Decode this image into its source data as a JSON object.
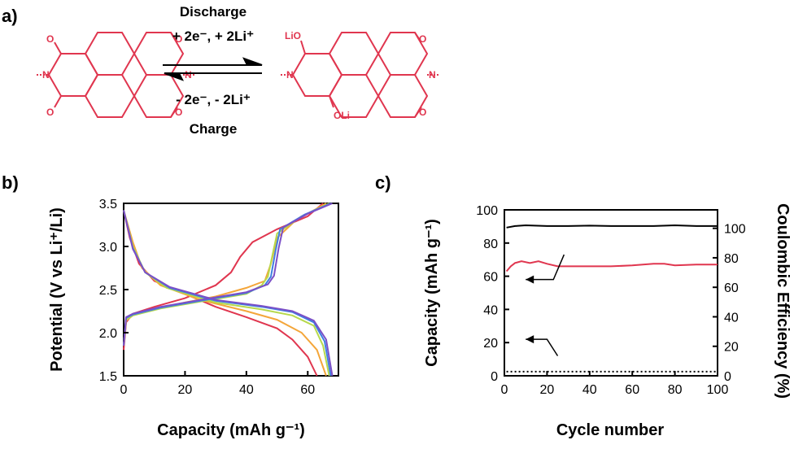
{
  "panels": {
    "a": "a)",
    "b": "b)",
    "c": "c)"
  },
  "reaction": {
    "top_line1": "Discharge",
    "top_line2": "+ 2e⁻, + 2Li⁺",
    "bottom_line1": "- 2e⁻, - 2Li⁺",
    "bottom_line2": "Charge",
    "reactant_atoms": [
      "O",
      "O",
      "O",
      "O",
      "N",
      "N"
    ],
    "product_atoms": [
      "LiO",
      "OLi",
      "O",
      "O",
      "N",
      "N"
    ],
    "molecule_color": "#e0364f"
  },
  "chart_data": [
    {
      "type": "line",
      "xlabel": "Capacity (mAh g⁻¹)",
      "ylabel": "Potential (V vs Li⁺/Li)",
      "xlim": [
        0,
        70
      ],
      "ylim": [
        1.5,
        3.5
      ],
      "xticks": [
        "0",
        "20",
        "40",
        "60"
      ],
      "yticks": [
        "1.5",
        "2.0",
        "2.5",
        "3.0",
        "3.5"
      ],
      "grid": false,
      "series": [
        {
          "color": "#e0364f",
          "discharge": [
            [
              0,
              3.42
            ],
            [
              2,
              3.1
            ],
            [
              5,
              2.8
            ],
            [
              10,
              2.6
            ],
            [
              20,
              2.45
            ],
            [
              30,
              2.3
            ],
            [
              40,
              2.18
            ],
            [
              50,
              2.05
            ],
            [
              55,
              1.92
            ],
            [
              60,
              1.72
            ],
            [
              63,
              1.5
            ]
          ],
          "charge": [
            [
              0,
              1.8
            ],
            [
              0.8,
              2.12
            ],
            [
              3,
              2.22
            ],
            [
              10,
              2.3
            ],
            [
              20,
              2.4
            ],
            [
              30,
              2.55
            ],
            [
              35,
              2.7
            ],
            [
              38,
              2.88
            ],
            [
              42,
              3.05
            ],
            [
              50,
              3.2
            ],
            [
              60,
              3.35
            ],
            [
              65,
              3.5
            ]
          ]
        },
        {
          "color": "#f4a63a",
          "discharge": [
            [
              0,
              3.42
            ],
            [
              3,
              3.05
            ],
            [
              6,
              2.75
            ],
            [
              12,
              2.55
            ],
            [
              25,
              2.38
            ],
            [
              40,
              2.25
            ],
            [
              50,
              2.15
            ],
            [
              58,
              2.0
            ],
            [
              63,
              1.8
            ],
            [
              66,
              1.5
            ]
          ],
          "charge": [
            [
              0,
              1.85
            ],
            [
              0.8,
              2.14
            ],
            [
              3,
              2.2
            ],
            [
              10,
              2.27
            ],
            [
              20,
              2.35
            ],
            [
              30,
              2.42
            ],
            [
              40,
              2.52
            ],
            [
              46,
              2.6
            ],
            [
              48,
              2.8
            ],
            [
              50,
              3.1
            ],
            [
              56,
              3.3
            ],
            [
              66,
              3.5
            ]
          ]
        },
        {
          "color": "#b6d94c",
          "discharge": [
            [
              0,
              3.42
            ],
            [
              3,
              3.0
            ],
            [
              7,
              2.7
            ],
            [
              14,
              2.52
            ],
            [
              30,
              2.35
            ],
            [
              45,
              2.27
            ],
            [
              55,
              2.2
            ],
            [
              62,
              2.08
            ],
            [
              65,
              1.85
            ],
            [
              67,
              1.5
            ]
          ],
          "charge": [
            [
              0,
              1.85
            ],
            [
              0.8,
              2.15
            ],
            [
              3,
              2.2
            ],
            [
              12,
              2.28
            ],
            [
              25,
              2.36
            ],
            [
              40,
              2.45
            ],
            [
              45,
              2.55
            ],
            [
              47,
              2.65
            ],
            [
              48.5,
              2.9
            ],
            [
              50,
              3.15
            ],
            [
              58,
              3.35
            ],
            [
              67,
              3.5
            ]
          ]
        },
        {
          "color": "#3f7fe0",
          "discharge": [
            [
              0,
              3.42
            ],
            [
              3,
              2.98
            ],
            [
              7,
              2.7
            ],
            [
              15,
              2.52
            ],
            [
              30,
              2.37
            ],
            [
              45,
              2.3
            ],
            [
              55,
              2.24
            ],
            [
              62,
              2.12
            ],
            [
              65.5,
              1.9
            ],
            [
              67.5,
              1.5
            ]
          ],
          "charge": [
            [
              0,
              1.85
            ],
            [
              0.8,
              2.17
            ],
            [
              3,
              2.21
            ],
            [
              12,
              2.29
            ],
            [
              25,
              2.37
            ],
            [
              40,
              2.46
            ],
            [
              46,
              2.55
            ],
            [
              48,
              2.65
            ],
            [
              49.5,
              2.95
            ],
            [
              51,
              3.2
            ],
            [
              59,
              3.37
            ],
            [
              67.5,
              3.5
            ]
          ]
        },
        {
          "color": "#7b4fc7",
          "discharge": [
            [
              0,
              3.42
            ],
            [
              3,
              2.97
            ],
            [
              7,
              2.7
            ],
            [
              15,
              2.53
            ],
            [
              30,
              2.38
            ],
            [
              45,
              2.31
            ],
            [
              55,
              2.25
            ],
            [
              62,
              2.14
            ],
            [
              66,
              1.92
            ],
            [
              68,
              1.5
            ]
          ],
          "charge": [
            [
              0,
              1.85
            ],
            [
              0.8,
              2.18
            ],
            [
              3,
              2.22
            ],
            [
              12,
              2.3
            ],
            [
              25,
              2.38
            ],
            [
              40,
              2.47
            ],
            [
              47,
              2.56
            ],
            [
              49,
              2.66
            ],
            [
              50.5,
              2.98
            ],
            [
              52,
              3.22
            ],
            [
              60,
              3.38
            ],
            [
              68,
              3.5
            ]
          ]
        }
      ]
    },
    {
      "type": "line",
      "xlabel": "Cycle number",
      "ylabel": "Capacity (mAh g⁻¹)",
      "ylabel_right": "Coulombic Efficiency (%)",
      "xlim": [
        0,
        100
      ],
      "ylim": [
        0,
        100
      ],
      "ylim_right": [
        0,
        112.5
      ],
      "xticks": [
        "0",
        "20",
        "40",
        "60",
        "80",
        "100"
      ],
      "yticks": [
        "0",
        "20",
        "40",
        "60",
        "80",
        "100"
      ],
      "yticks_right": [
        "0",
        "20",
        "40",
        "60",
        "80",
        "100"
      ],
      "grid": false,
      "series": [
        {
          "axis": "right",
          "color": "#000000",
          "style": "solid",
          "points": [
            [
              1,
              100.5
            ],
            [
              5,
              101.5
            ],
            [
              10,
              102
            ],
            [
              20,
              101.5
            ],
            [
              30,
              101.5
            ],
            [
              40,
              101.8
            ],
            [
              50,
              101.5
            ],
            [
              60,
              101.5
            ],
            [
              70,
              101.5
            ],
            [
              80,
              102
            ],
            [
              90,
              101.5
            ],
            [
              100,
              101.5
            ]
          ]
        },
        {
          "axis": "left",
          "color": "#e0364f",
          "style": "solid",
          "points": [
            [
              1,
              63
            ],
            [
              3,
              66
            ],
            [
              5,
              68
            ],
            [
              8,
              69
            ],
            [
              12,
              68
            ],
            [
              16,
              69
            ],
            [
              20,
              67.5
            ],
            [
              25,
              66
            ],
            [
              30,
              66
            ],
            [
              40,
              66
            ],
            [
              50,
              66
            ],
            [
              60,
              66.5
            ],
            [
              70,
              67.5
            ],
            [
              75,
              67.5
            ],
            [
              80,
              66.5
            ],
            [
              90,
              67
            ],
            [
              100,
              67
            ]
          ]
        },
        {
          "axis": "left",
          "color": "#000000",
          "style": "dotted",
          "points": [
            [
              1,
              2.5
            ],
            [
              100,
              2.5
            ]
          ]
        }
      ],
      "arrows": [
        {
          "from": [
            28,
            73
          ],
          "to": [
            10,
            58
          ]
        },
        {
          "from": [
            25,
            12
          ],
          "to": [
            10,
            22
          ]
        }
      ]
    }
  ]
}
